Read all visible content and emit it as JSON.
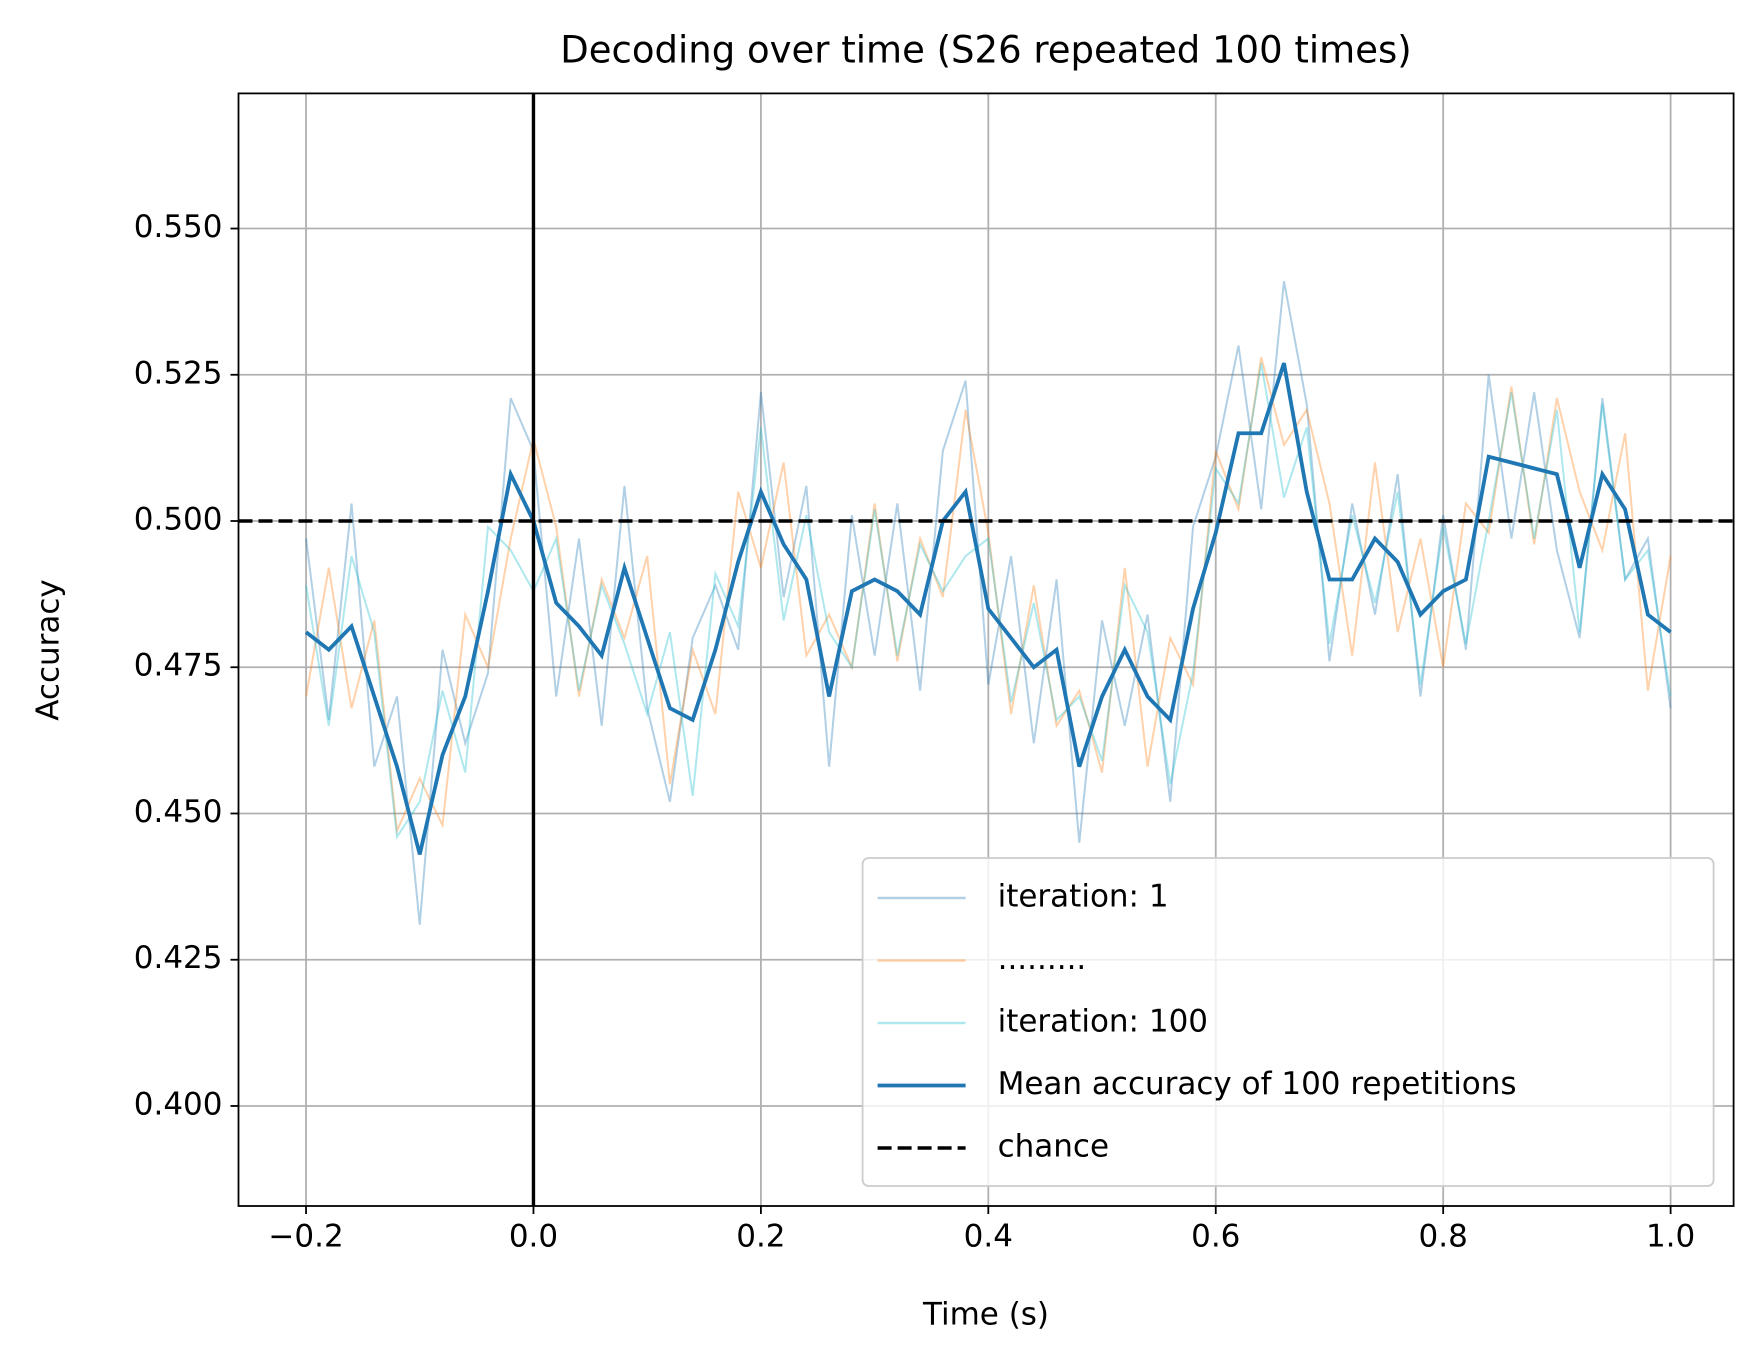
{
  "chart_data": {
    "type": "line",
    "title": "Decoding over time (S26 repeated 100 times)",
    "x_label": "Time (s)",
    "y_label": "Accuracy",
    "x": [
      -0.2,
      -0.18,
      -0.16,
      -0.14,
      -0.12,
      -0.1,
      -0.08,
      -0.06,
      -0.04,
      -0.02,
      0,
      0.02,
      0.04,
      0.06,
      0.08,
      0.1,
      0.12,
      0.14,
      0.16,
      0.18,
      0.2,
      0.22,
      0.24,
      0.26,
      0.28,
      0.3,
      0.32,
      0.34,
      0.36,
      0.38,
      0.4,
      0.42,
      0.44,
      0.46,
      0.48,
      0.5,
      0.52,
      0.54,
      0.56,
      0.58,
      0.6,
      0.62,
      0.64,
      0.66,
      0.68,
      0.7,
      0.72,
      0.74,
      0.76,
      0.78,
      0.8,
      0.82,
      0.84,
      0.86,
      0.88,
      0.9,
      0.92,
      0.94,
      0.96,
      0.98,
      1.0
    ],
    "series": [
      {
        "name": "iteration: 1",
        "color": "#1f77b4",
        "values": [
          0.497,
          0.466,
          0.503,
          0.458,
          0.47,
          0.431,
          0.478,
          0.462,
          0.474,
          0.521,
          0.512,
          0.47,
          0.497,
          0.465,
          0.506,
          0.468,
          0.452,
          0.48,
          0.489,
          0.478,
          0.522,
          0.487,
          0.506,
          0.458,
          0.501,
          0.477,
          0.503,
          0.471,
          0.512,
          0.524,
          0.472,
          0.494,
          0.462,
          0.49,
          0.445,
          0.483,
          0.465,
          0.484,
          0.452,
          0.499,
          0.511,
          0.53,
          0.502,
          0.541,
          0.52,
          0.476,
          0.503,
          0.484,
          0.508,
          0.47,
          0.501,
          0.478,
          0.525,
          0.497,
          0.522,
          0.495,
          0.48,
          0.521,
          0.49,
          0.497,
          0.468
        ]
      },
      {
        "name": ".........",
        "color": "#ff7f0e",
        "values": [
          0.47,
          0.492,
          0.468,
          0.483,
          0.447,
          0.456,
          0.448,
          0.484,
          0.475,
          0.497,
          0.514,
          0.499,
          0.47,
          0.49,
          0.48,
          0.494,
          0.455,
          0.478,
          0.467,
          0.505,
          0.492,
          0.51,
          0.477,
          0.484,
          0.475,
          0.503,
          0.476,
          0.497,
          0.487,
          0.519,
          0.498,
          0.467,
          0.489,
          0.465,
          0.471,
          0.457,
          0.492,
          0.458,
          0.48,
          0.472,
          0.512,
          0.502,
          0.528,
          0.513,
          0.519,
          0.503,
          0.477,
          0.51,
          0.481,
          0.497,
          0.475,
          0.503,
          0.498,
          0.523,
          0.496,
          0.521,
          0.505,
          0.495,
          0.515,
          0.471,
          0.494
        ]
      },
      {
        "name": "iteration: 100",
        "color": "#17becf",
        "values": [
          0.489,
          0.465,
          0.494,
          0.481,
          0.446,
          0.452,
          0.471,
          0.457,
          0.499,
          0.495,
          0.488,
          0.497,
          0.471,
          0.489,
          0.479,
          0.467,
          0.481,
          0.453,
          0.491,
          0.482,
          0.516,
          0.483,
          0.501,
          0.481,
          0.475,
          0.502,
          0.477,
          0.496,
          0.488,
          0.494,
          0.497,
          0.469,
          0.486,
          0.466,
          0.47,
          0.459,
          0.489,
          0.481,
          0.455,
          0.474,
          0.509,
          0.503,
          0.527,
          0.504,
          0.516,
          0.479,
          0.501,
          0.486,
          0.505,
          0.472,
          0.499,
          0.479,
          0.5,
          0.522,
          0.497,
          0.519,
          0.481,
          0.52,
          0.49,
          0.495,
          0.47
        ]
      }
    ],
    "mean": {
      "name": "Mean accuracy of 100 repetitions",
      "color": "#1f77b4",
      "values": [
        0.481,
        0.478,
        0.482,
        0.47,
        0.458,
        0.443,
        0.46,
        0.47,
        0.488,
        0.508,
        0.5,
        0.486,
        0.482,
        0.477,
        0.492,
        0.48,
        0.468,
        0.466,
        0.478,
        0.493,
        0.505,
        0.496,
        0.49,
        0.47,
        0.488,
        0.49,
        0.488,
        0.484,
        0.5,
        0.505,
        0.485,
        0.48,
        0.475,
        0.478,
        0.458,
        0.47,
        0.478,
        0.47,
        0.466,
        0.485,
        0.498,
        0.515,
        0.515,
        0.527,
        0.505,
        0.49,
        0.49,
        0.497,
        0.493,
        0.484,
        0.488,
        0.49,
        0.511,
        0.51,
        0.509,
        0.508,
        0.492,
        0.508,
        0.502,
        0.484,
        0.481
      ]
    },
    "chance": {
      "name": "chance",
      "value": 0.5,
      "color": "#000000"
    },
    "vline": 0,
    "xlim": [
      -0.2594,
      1.0554
    ],
    "ylim": [
      0.3829,
      0.5731
    ],
    "xticks": [
      {
        "value": -0.2,
        "label": "−0.2"
      },
      {
        "value": 0,
        "label": "0.0"
      },
      0.2,
      0.4,
      0.6,
      0.8,
      {
        "value": 1,
        "label": "1.0"
      }
    ],
    "yticks": [
      {
        "value": 0.4,
        "label": "0.400"
      },
      {
        "value": 0.425,
        "label": "0.425"
      },
      {
        "value": 0.45,
        "label": "0.450"
      },
      {
        "value": 0.475,
        "label": "0.475"
      },
      {
        "value": 0.5,
        "label": "0.500"
      },
      {
        "value": 0.525,
        "label": "0.525"
      },
      {
        "value": 0.55,
        "label": "0.550"
      }
    ],
    "grid": true,
    "legend": "lower right"
  }
}
